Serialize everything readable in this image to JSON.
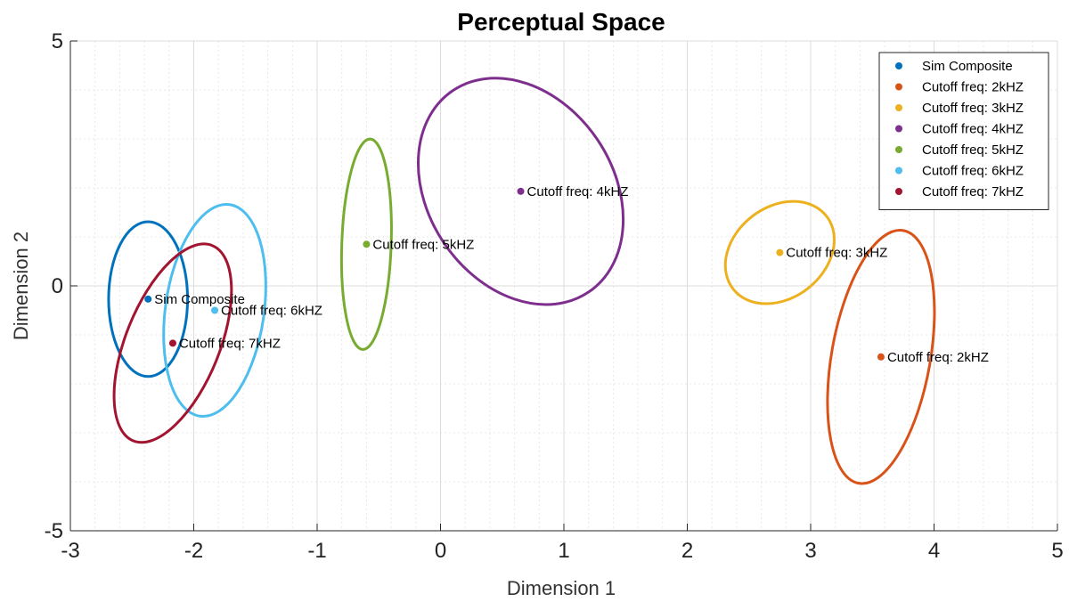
{
  "chart_data": {
    "type": "scatter",
    "title": "Perceptual Space",
    "xlabel": "Dimension 1",
    "ylabel": "Dimension 2",
    "xlim": [
      -3,
      5
    ],
    "ylim": [
      -5,
      5
    ],
    "xticks": [
      -3,
      -2,
      -1,
      0,
      1,
      2,
      3,
      4,
      5
    ],
    "yticks": [
      -5,
      0,
      5
    ],
    "grid": true,
    "minor_grid": true,
    "legend_position": "top-right",
    "series": [
      {
        "name": "Sim Composite",
        "color": "#0072BD",
        "point": {
          "x": -2.37,
          "y": -0.27
        },
        "point_label": "Sim Composite",
        "ellipse": {
          "cx": -2.37,
          "cy": -0.27,
          "rx": 0.32,
          "ry": 1.58,
          "angle_deg": 0
        }
      },
      {
        "name": "Cutoff freq: 2kHZ",
        "color": "#D95319",
        "point": {
          "x": 3.57,
          "y": -1.45
        },
        "point_label": "Cutoff freq: 2kHZ",
        "ellipse": {
          "cx": 3.57,
          "cy": -1.45,
          "rx": 0.4,
          "ry": 2.62,
          "angle_deg": 10
        }
      },
      {
        "name": "Cutoff freq: 3kHZ",
        "color": "#EDB120",
        "point": {
          "x": 2.75,
          "y": 0.68
        },
        "point_label": "Cutoff freq: 3kHZ",
        "ellipse": {
          "cx": 2.75,
          "cy": 0.68,
          "rx": 0.48,
          "ry": 0.93,
          "angle_deg": -38
        }
      },
      {
        "name": "Cutoff freq: 4kHZ",
        "color": "#7E2F8E",
        "point": {
          "x": 0.65,
          "y": 1.93
        },
        "point_label": "Cutoff freq: 4kHZ",
        "ellipse": {
          "cx": 0.65,
          "cy": 1.93,
          "rx": 0.75,
          "ry": 2.48,
          "angle_deg": -34
        }
      },
      {
        "name": "Cutoff freq: 5kHZ",
        "color": "#77AC30",
        "point": {
          "x": -0.6,
          "y": 0.85
        },
        "point_label": "Cutoff freq: 5kHZ",
        "ellipse": {
          "cx": -0.6,
          "cy": 0.85,
          "rx": 0.2,
          "ry": 2.15,
          "angle_deg": 2
        }
      },
      {
        "name": "Cutoff freq: 6kHZ",
        "color": "#4DBEEE",
        "point": {
          "x": -1.83,
          "y": -0.5
        },
        "point_label": "Cutoff freq: 6kHZ",
        "ellipse": {
          "cx": -1.83,
          "cy": -0.5,
          "rx": 0.4,
          "ry": 2.18,
          "angle_deg": 8
        }
      },
      {
        "name": "Cutoff freq: 7kHZ",
        "color": "#A2142F",
        "point": {
          "x": -2.17,
          "y": -1.17
        },
        "point_label": "Cutoff freq: 7kHZ",
        "ellipse": {
          "cx": -2.17,
          "cy": -1.17,
          "rx": 0.38,
          "ry": 2.15,
          "angle_deg": 22
        }
      }
    ]
  }
}
